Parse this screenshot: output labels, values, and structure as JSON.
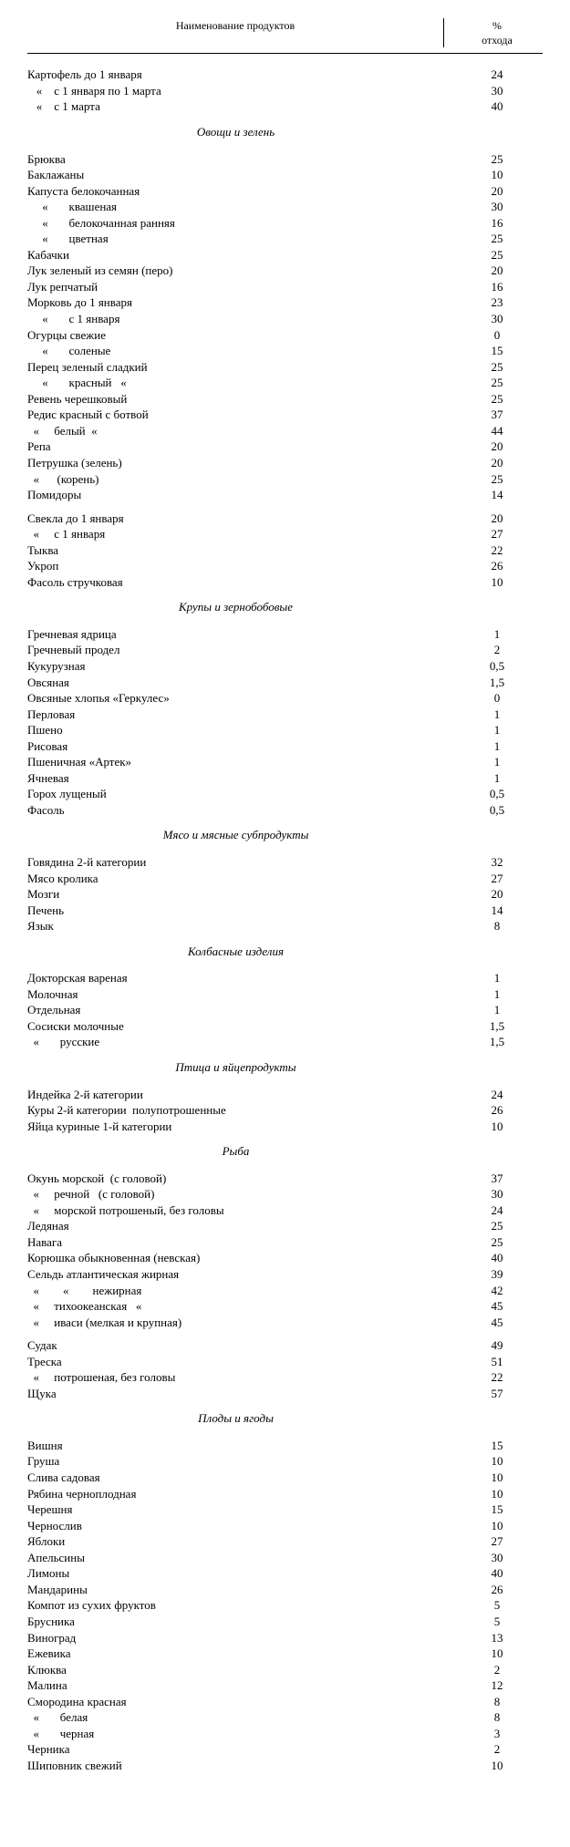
{
  "columns": {
    "name": "Наименование продуктов",
    "pct_line1": "%",
    "pct_line2": "отхода"
  },
  "rows": [
    {
      "type": "item",
      "name": "Картофель до 1 января",
      "pct": "24"
    },
    {
      "type": "item",
      "name": "   «    с 1 января по 1 марта",
      "pct": "30"
    },
    {
      "type": "item",
      "name": "   «    с 1 марта",
      "pct": "40"
    },
    {
      "type": "section",
      "name": "Овощи и зелень"
    },
    {
      "type": "spacer"
    },
    {
      "type": "item",
      "name": "Брюква",
      "pct": "25"
    },
    {
      "type": "item",
      "name": "Баклажаны",
      "pct": "10"
    },
    {
      "type": "item",
      "name": "Капуста белокочанная",
      "pct": "20"
    },
    {
      "type": "item",
      "name": "     «       квашеная",
      "pct": "30"
    },
    {
      "type": "item",
      "name": "     «       белокочанная ранняя",
      "pct": "16"
    },
    {
      "type": "item",
      "name": "     «       цветная",
      "pct": "25"
    },
    {
      "type": "item",
      "name": "Кабачки",
      "pct": "25"
    },
    {
      "type": "item",
      "name": "Лук зеленый из семян (перо)",
      "pct": "20"
    },
    {
      "type": "item",
      "name": "Лук репчатый",
      "pct": "16"
    },
    {
      "type": "item",
      "name": "Морковь до 1 января",
      "pct": "23"
    },
    {
      "type": "item",
      "name": "     «       с 1 января",
      "pct": "30"
    },
    {
      "type": "item",
      "name": "Огурцы свежие",
      "pct": "0"
    },
    {
      "type": "item",
      "name": "     «       соленые",
      "pct": "15"
    },
    {
      "type": "item",
      "name": "Перец зеленый сладкий",
      "pct": "25"
    },
    {
      "type": "item",
      "name": "     «       красный   «",
      "pct": "25"
    },
    {
      "type": "item",
      "name": "Ревень черешковый",
      "pct": "25"
    },
    {
      "type": "item",
      "name": "Редис красный с ботвой",
      "pct": "37"
    },
    {
      "type": "item",
      "name": "  «     белый  «",
      "pct": "44"
    },
    {
      "type": "item",
      "name": "Репа",
      "pct": "20"
    },
    {
      "type": "item",
      "name": "Петрушка (зелень)",
      "pct": "20"
    },
    {
      "type": "item",
      "name": "  «      (корень)",
      "pct": "25"
    },
    {
      "type": "item",
      "name": "Помидоры",
      "pct": "14"
    },
    {
      "type": "spacer"
    },
    {
      "type": "item",
      "name": "Свекла до 1 января",
      "pct": "20"
    },
    {
      "type": "item",
      "name": "  «     с 1 января",
      "pct": "27"
    },
    {
      "type": "item",
      "name": "Тыква",
      "pct": "22"
    },
    {
      "type": "item",
      "name": "Укроп",
      "pct": "26"
    },
    {
      "type": "item",
      "name": "Фасоль стручковая",
      "pct": "10"
    },
    {
      "type": "section",
      "name": "Крупы и зернобобовые"
    },
    {
      "type": "spacer"
    },
    {
      "type": "item",
      "name": "Гречневая ядрица",
      "pct": "1"
    },
    {
      "type": "item",
      "name": "Гречневый продел",
      "pct": "2"
    },
    {
      "type": "item",
      "name": "Кукурузная",
      "pct": "0,5"
    },
    {
      "type": "item",
      "name": "Овсяная",
      "pct": "1,5"
    },
    {
      "type": "item",
      "name": "Овсяные хлопья «Геркулес»",
      "pct": "0"
    },
    {
      "type": "item",
      "name": "Перловая",
      "pct": "1"
    },
    {
      "type": "item",
      "name": "Пшено",
      "pct": "1"
    },
    {
      "type": "item",
      "name": "Рисовая",
      "pct": "1"
    },
    {
      "type": "item",
      "name": "Пшеничная «Артек»",
      "pct": "1"
    },
    {
      "type": "item",
      "name": "Ячневая",
      "pct": "1"
    },
    {
      "type": "item",
      "name": "Горох лущеный",
      "pct": "0,5"
    },
    {
      "type": "item",
      "name": "Фасоль",
      "pct": "0,5"
    },
    {
      "type": "section",
      "name": "Мясо и мясные субпродукты"
    },
    {
      "type": "spacer"
    },
    {
      "type": "item",
      "name": "Говядина 2-й категории",
      "pct": "32"
    },
    {
      "type": "item",
      "name": "Мясо кролика",
      "pct": "27"
    },
    {
      "type": "item",
      "name": "Мозги",
      "pct": "20"
    },
    {
      "type": "item",
      "name": "Печень",
      "pct": "14"
    },
    {
      "type": "item",
      "name": "Язык",
      "pct": "8"
    },
    {
      "type": "section",
      "name": "Колбасные изделия"
    },
    {
      "type": "spacer"
    },
    {
      "type": "item",
      "name": "Докторская вареная",
      "pct": "1"
    },
    {
      "type": "item",
      "name": "Молочная",
      "pct": "1"
    },
    {
      "type": "item",
      "name": "Отдельная",
      "pct": "1"
    },
    {
      "type": "item",
      "name": "Сосиски молочные",
      "pct": "1,5"
    },
    {
      "type": "item",
      "name": "  «       русские",
      "pct": "1,5"
    },
    {
      "type": "section",
      "name": "Птица и яйцепродукты"
    },
    {
      "type": "spacer"
    },
    {
      "type": "item",
      "name": "Индейка 2-й категории",
      "pct": "24"
    },
    {
      "type": "item",
      "name": "Куры 2-й категории  полупотрошенные",
      "pct": "26"
    },
    {
      "type": "item",
      "name": "Яйца куриные 1-й категории",
      "pct": "10"
    },
    {
      "type": "section",
      "name": "Рыба"
    },
    {
      "type": "spacer"
    },
    {
      "type": "item",
      "name": "Окунь морской  (с головой)",
      "pct": "37"
    },
    {
      "type": "item",
      "name": "  «     речной   (с головой)",
      "pct": "30"
    },
    {
      "type": "item",
      "name": "  «     морской потрошеный, без головы",
      "pct": "24"
    },
    {
      "type": "item",
      "name": "Ледяная",
      "pct": "25"
    },
    {
      "type": "item",
      "name": "Навага",
      "pct": "25"
    },
    {
      "type": "item",
      "name": "Корюшка обыкновенная (невская)",
      "pct": "40"
    },
    {
      "type": "item",
      "name": "Сельдь атлантическая жирная",
      "pct": "39"
    },
    {
      "type": "item",
      "name": "  «        «        нежирная",
      "pct": "42"
    },
    {
      "type": "item",
      "name": "  «     тихоокеанская   «",
      "pct": "45"
    },
    {
      "type": "item",
      "name": "  «     иваси (мелкая и крупная)",
      "pct": "45"
    },
    {
      "type": "spacer"
    },
    {
      "type": "item",
      "name": "Судак",
      "pct": "49"
    },
    {
      "type": "item",
      "name": "Треска",
      "pct": "51"
    },
    {
      "type": "item",
      "name": "  «     потрошеная, без головы",
      "pct": "22"
    },
    {
      "type": "item",
      "name": "Щука",
      "pct": "57"
    },
    {
      "type": "section",
      "name": "Плоды и ягоды"
    },
    {
      "type": "spacer"
    },
    {
      "type": "item",
      "name": "Вишня",
      "pct": "15"
    },
    {
      "type": "item",
      "name": "Груша",
      "pct": "10"
    },
    {
      "type": "item",
      "name": "Слива садовая",
      "pct": "10"
    },
    {
      "type": "item",
      "name": "Рябина черноплодная",
      "pct": "10"
    },
    {
      "type": "item",
      "name": "Черешня",
      "pct": "15"
    },
    {
      "type": "item",
      "name": "Чернослив",
      "pct": "10"
    },
    {
      "type": "item",
      "name": "Яблоки",
      "pct": "27"
    },
    {
      "type": "item",
      "name": "Апельсины",
      "pct": "30"
    },
    {
      "type": "item",
      "name": "Лимоны",
      "pct": "40"
    },
    {
      "type": "item",
      "name": "Мандарины",
      "pct": "26"
    },
    {
      "type": "item",
      "name": "Компот из сухих фруктов",
      "pct": "5"
    },
    {
      "type": "item",
      "name": "Брусника",
      "pct": "5"
    },
    {
      "type": "item",
      "name": "Виноград",
      "pct": "13"
    },
    {
      "type": "item",
      "name": "Ежевика",
      "pct": "10"
    },
    {
      "type": "item",
      "name": "Клюква",
      "pct": "2"
    },
    {
      "type": "item",
      "name": "Малина",
      "pct": "12"
    },
    {
      "type": "item",
      "name": "Смородина красная",
      "pct": "8"
    },
    {
      "type": "item",
      "name": "  «       белая",
      "pct": "8"
    },
    {
      "type": "item",
      "name": "  «       черная",
      "pct": "3"
    },
    {
      "type": "item",
      "name": "Черника",
      "pct": "2"
    },
    {
      "type": "item",
      "name": "Шиповник свежий",
      "pct": "10"
    }
  ]
}
